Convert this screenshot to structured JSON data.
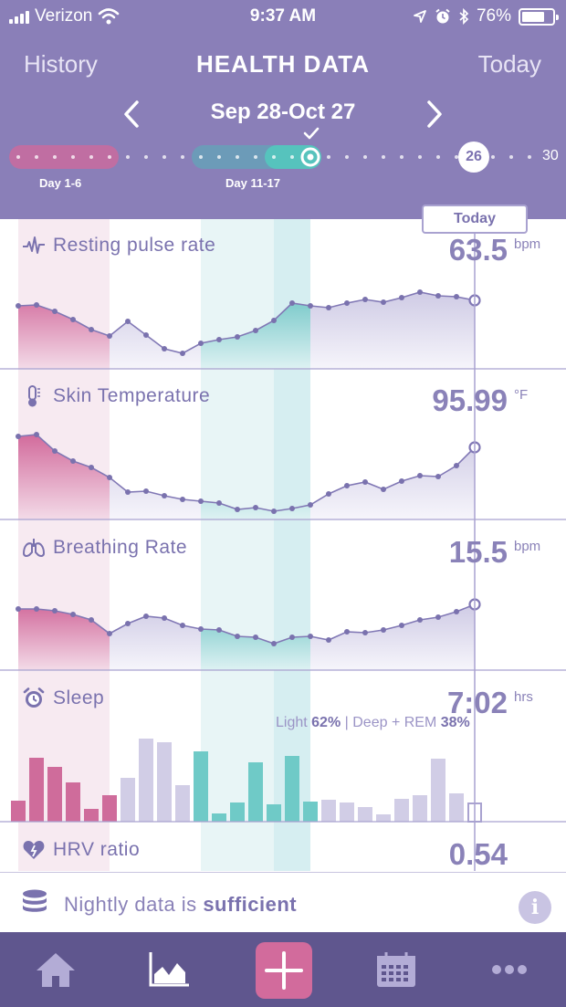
{
  "status_bar": {
    "carrier": "Verizon",
    "time": "9:37 AM",
    "battery": "76%",
    "battery_level": 0.76
  },
  "header": {
    "left_nav": "History",
    "title": "HEALTH DATA",
    "right_nav": "Today",
    "date_range": "Sep 28-Oct 27"
  },
  "timeline": {
    "labels": [
      {
        "text": "Day 1-6"
      },
      {
        "text": "Day 11-17"
      }
    ],
    "current_day": "26",
    "end_day": "30"
  },
  "today_tab": "Today",
  "metrics": [
    {
      "name": "Resting pulse rate",
      "value": "63.5",
      "unit": "bpm",
      "icon": "pulse-icon"
    },
    {
      "name": "Skin Temperature",
      "value": "95.99",
      "unit": "°F",
      "icon": "thermometer-icon"
    },
    {
      "name": "Breathing Rate",
      "value": "15.5",
      "unit": "bpm",
      "icon": "lungs-icon"
    },
    {
      "name": "Sleep",
      "value": "7:02",
      "unit": "hrs",
      "icon": "alarm-clock-icon",
      "split": {
        "light_label": "Light",
        "light": "62%",
        "separator": "|",
        "deep_label": "Deep + REM",
        "deep": "38%"
      }
    },
    {
      "name": "HRV ratio",
      "value": "0.54",
      "unit": "",
      "icon": "heart-icon"
    }
  ],
  "footer": {
    "text_prefix": "Nightly data is",
    "text_bold": "sufficient",
    "info_symbol": "i"
  },
  "tabbar": {
    "items": [
      "home-icon",
      "chart-icon",
      "plus-icon",
      "calendar-icon",
      "more-icon"
    ]
  },
  "colors": {
    "header_bg": "#8a7fb8",
    "tabbar_bg": "#5f568e",
    "pink": "#d26b9c",
    "teal": "#6ccbc8",
    "lavender": "#8a82b8"
  }
}
